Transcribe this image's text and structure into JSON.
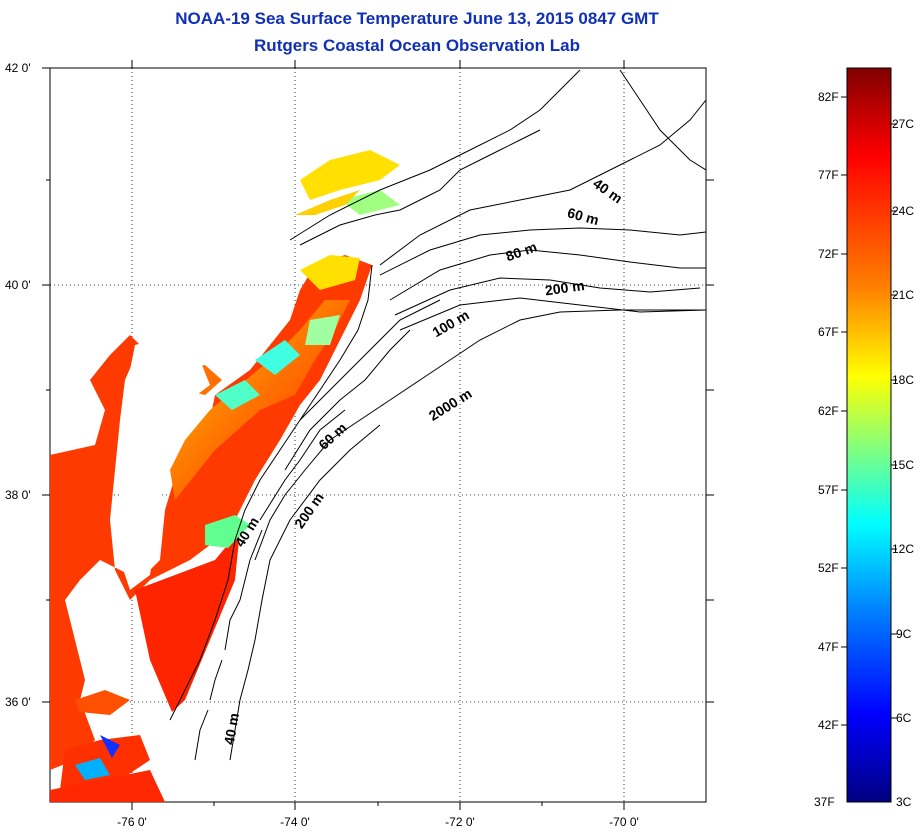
{
  "title": {
    "line1": "NOAA-19 Sea Surface Temperature June 13, 2015 0847 GMT",
    "line2": "Rutgers Coastal Ocean Observation Lab"
  },
  "map": {
    "lat_labels": [
      "42 0'",
      "40 0'",
      "38 0'",
      "36 0'"
    ],
    "lon_labels": [
      "-76 0'",
      "-74 0'",
      "-72 0'",
      "-70 0'"
    ],
    "depth_labels": [
      "40 m",
      "60 m",
      "80 m",
      "200 m",
      "100 m",
      "2000 m",
      "60 m",
      "200 m",
      "40 m",
      "40 m"
    ]
  },
  "colorbar": {
    "fahrenheit_labels": [
      "82F",
      "77F",
      "72F",
      "67F",
      "62F",
      "57F",
      "52F",
      "47F",
      "42F",
      "37F"
    ],
    "celsius_labels": [
      "27C",
      "24C",
      "21C",
      "18C",
      "15C",
      "12C",
      "9C",
      "6C",
      "3C"
    ],
    "gradient_colors": [
      "#800000",
      "#ff0000",
      "#ff8000",
      "#ffff00",
      "#80ff80",
      "#00ffff",
      "#0080ff",
      "#0000ff",
      "#000080"
    ]
  },
  "colors": {
    "title": "#1030b8",
    "land": "#ffffff",
    "frame": "#000000"
  }
}
